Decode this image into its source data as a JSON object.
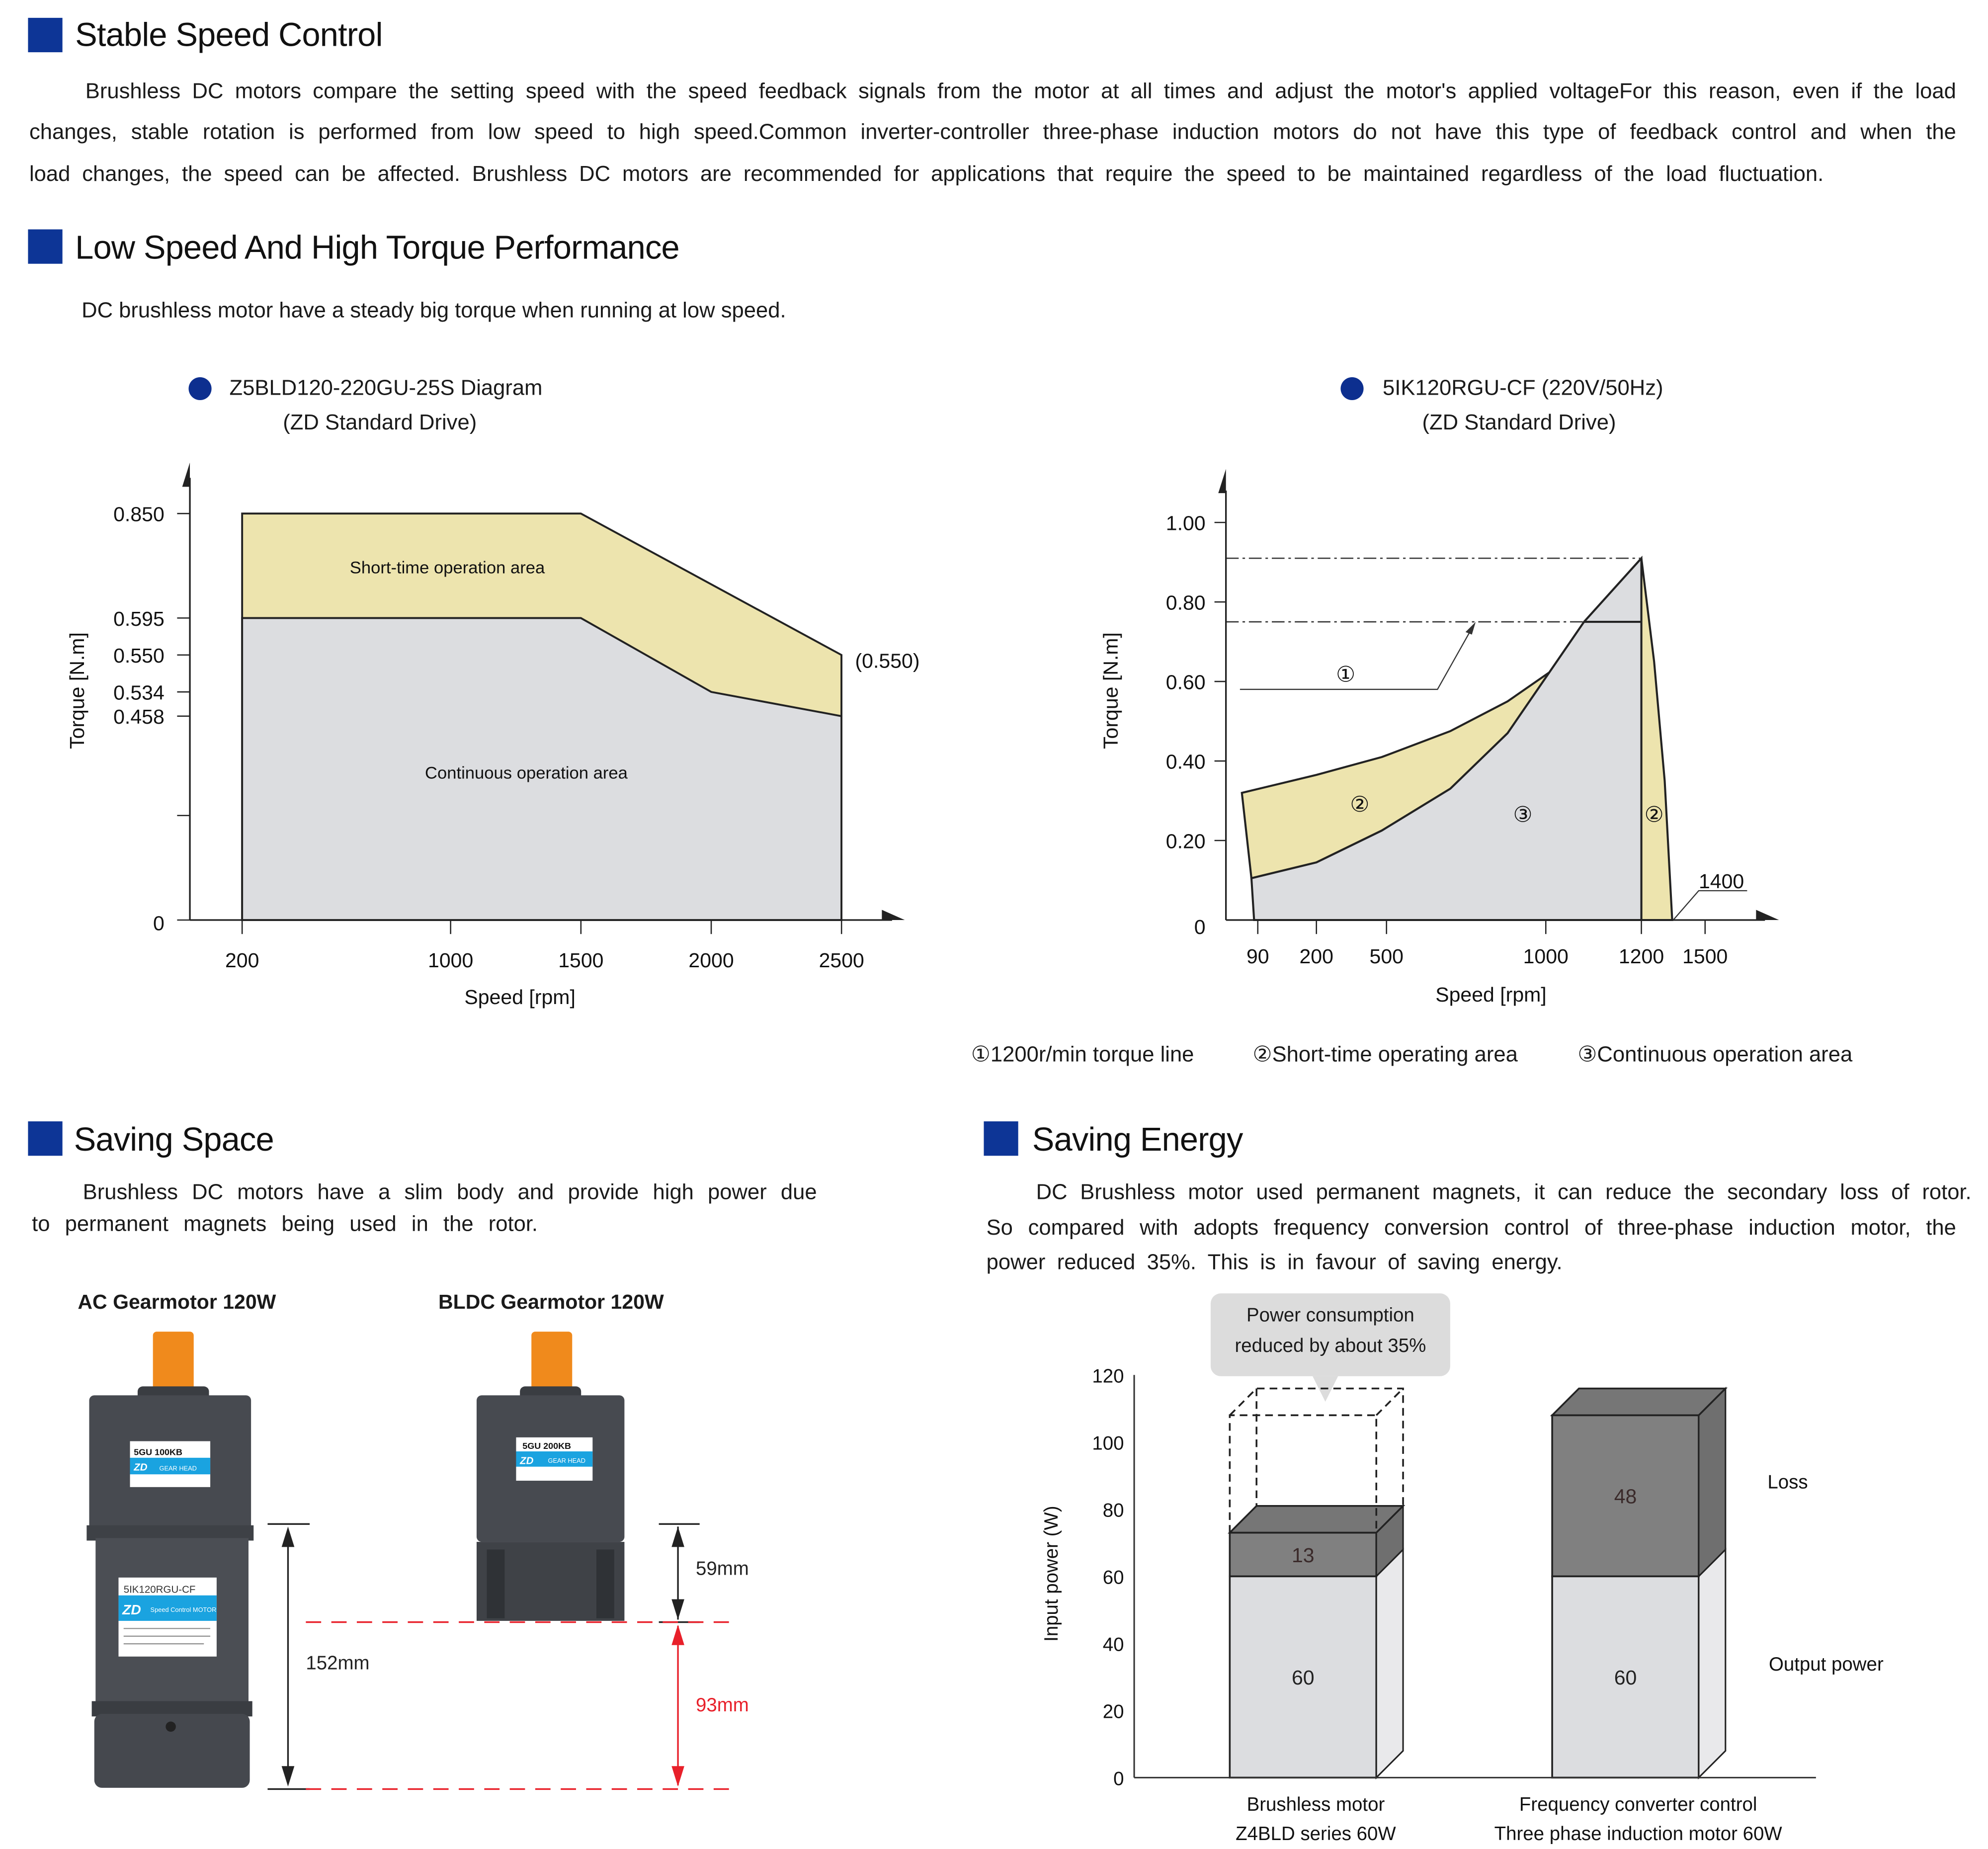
{
  "sections": {
    "stable": {
      "title": "Stable Speed Control",
      "lines": [
        "Brushless DC motors compare the setting speed with the speed feedback signals from the motor at all times and adjust the motor's applied voltageFor this reason, even if the load",
        "changes, stable rotation is performed from low speed to high speed.Common inverter-controller three-phase induction motors do not have this type of feedback control and when the",
        "load changes, the speed can be affected. Brushless DC motors are recommended for applications that require the speed to be maintained regardless of the load fluctuation."
      ]
    },
    "torque": {
      "title": "Low Speed And High Torque Performance",
      "subtitle": "DC brushless motor have a steady big torque when running at low speed."
    },
    "space": {
      "title": "Saving Space",
      "lines": [
        "Brushless DC motors have a slim body and provide high power due",
        "to permanent magnets being used in the rotor."
      ],
      "ac_label": "AC Gearmotor 120W",
      "bldc_label": "BLDC Gearmotor 120W",
      "ac_plate_gear": "5GU   100KB",
      "ac_plate_motor": "5IK120RGU-CF",
      "ac_plate_motor_sub": "Speed Control MOTOR",
      "bldc_plate_gear": "5GU  200KB",
      "brand": "ZD",
      "gear_head": "GEAR HEAD",
      "dim_total": "152mm",
      "dim_bldc": "59mm",
      "dim_saved": "93mm",
      "saved_color": "#e8202a"
    },
    "energy": {
      "title": "Saving Energy",
      "lines": [
        "DC Brushless motor used permanent magnets, it can reduce the secondary loss of rotor.",
        "So compared with adopts frequency conversion control of three-phase induction motor, the",
        "power reduced 35%. This is in favour of saving energy."
      ]
    }
  },
  "colors": {
    "accent": "#0d3596",
    "short_area": "#ede4ae",
    "continuous_area": "#dcdde0",
    "loss": "#808080",
    "output": "#dcdde0"
  },
  "chart_data": [
    {
      "type": "area",
      "title": "Z5BLD120-220GU-25S  Diagram",
      "subtitle": "(ZD Standard Drive)",
      "xlabel": "Speed [rpm]",
      "ylabel": "Torque [N.m]",
      "x_ticks": [
        200,
        1000,
        1500,
        2000,
        2500
      ],
      "y_ticks": [
        "0",
        "0.458",
        "0.534",
        "0.550",
        "0.595",
        "0.850"
      ],
      "series": [
        {
          "name": "Short-time operation area",
          "points": [
            [
              200,
              0.85
            ],
            [
              1500,
              0.85
            ],
            [
              2500,
              0.55
            ]
          ]
        },
        {
          "name": "Continuous operation area",
          "points": [
            [
              200,
              0.595
            ],
            [
              1500,
              0.595
            ],
            [
              2000,
              0.534
            ],
            [
              2500,
              0.458
            ]
          ]
        }
      ],
      "annotation": "(0.550)"
    },
    {
      "type": "area",
      "title": "5IK120RGU-CF (220V/50Hz)",
      "subtitle": "(ZD Standard Drive)",
      "xlabel": "Speed [rpm]",
      "ylabel": "Torque [N.m]",
      "x_ticks": [
        90,
        200,
        500,
        1000,
        1200,
        1500
      ],
      "y_ticks": [
        "0",
        "0.20",
        "0.40",
        "0.60",
        "0.80",
        "1.00"
      ],
      "ylim": [
        0,
        1.0
      ],
      "upper_curve": [
        [
          60,
          0.32
        ],
        [
          200,
          0.365
        ],
        [
          480,
          0.41
        ],
        [
          700,
          0.475
        ],
        [
          880,
          0.55
        ],
        [
          1100,
          0.7
        ],
        [
          1200,
          0.91
        ]
      ],
      "lower_curve": [
        [
          78,
          0.105
        ],
        [
          200,
          0.145
        ],
        [
          480,
          0.225
        ],
        [
          700,
          0.33
        ],
        [
          880,
          0.47
        ],
        [
          1080,
          0.75
        ],
        [
          1200,
          0.91
        ]
      ],
      "right_curve": [
        [
          1200,
          0.91
        ],
        [
          1260,
          0.65
        ],
        [
          1310,
          0.35
        ],
        [
          1345,
          0
        ]
      ],
      "torque_line_1200": 0.75,
      "peak_torque": 0.91,
      "marks": [
        "①",
        "②",
        "③",
        "②"
      ],
      "annotation": "1400",
      "legend": [
        "①1200r/min torque line",
        "②Short-time operating area",
        "③Continuous operation area"
      ]
    },
    {
      "type": "bar",
      "stacked": true,
      "ylabel": "Input power (W)",
      "ylim": [
        0,
        120
      ],
      "y_ticks": [
        0,
        20,
        40,
        60,
        80,
        100,
        120
      ],
      "categories": [
        [
          "Brushless motor",
          "Z4BLD series 60W"
        ],
        [
          "Frequency converter control",
          "Three phase induction motor 60W"
        ]
      ],
      "series": [
        {
          "name": "Output power",
          "values": [
            60,
            60
          ]
        },
        {
          "name": "Loss",
          "values": [
            13,
            48
          ]
        }
      ],
      "callout": [
        "Power consumption",
        "reduced by about 35%"
      ]
    }
  ]
}
